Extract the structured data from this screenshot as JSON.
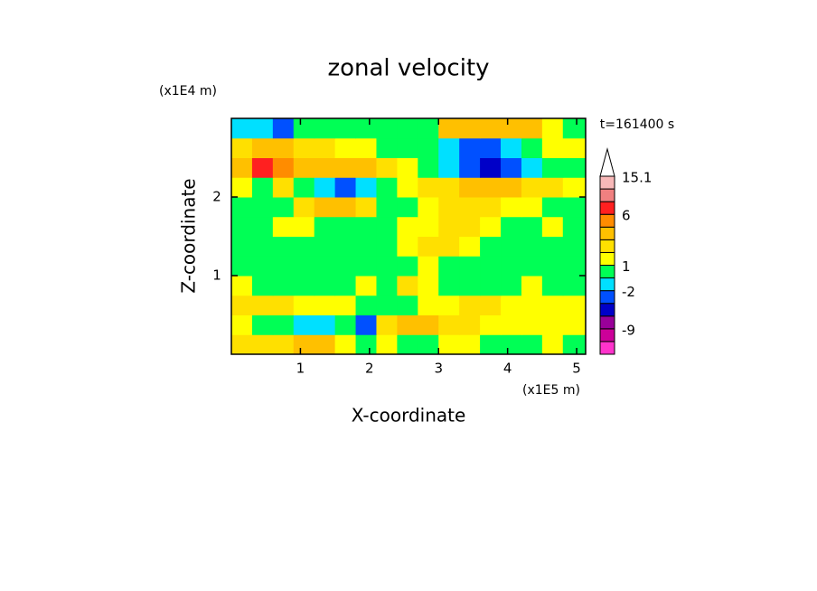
{
  "chart_data": {
    "type": "contour",
    "title": "zonal velocity",
    "time_label": "t=161400 s",
    "xlabel": "X-coordinate",
    "ylabel": "Z-coordinate",
    "x_unit": "(x1E5 m)",
    "y_unit": "(x1E4 m)",
    "xlim": [
      0,
      5.13
    ],
    "ylim": [
      0,
      3
    ],
    "xticks": [
      1,
      2,
      3,
      4,
      5
    ],
    "yticks": [
      1,
      2
    ],
    "x_edges": [
      0,
      0.3,
      0.6,
      0.9,
      1.2,
      1.5,
      1.8,
      2.1,
      2.4,
      2.7,
      3.0,
      3.3,
      3.6,
      3.9,
      4.2,
      4.5,
      4.8,
      5.13
    ],
    "z_edges": [
      0,
      0.25,
      0.5,
      0.75,
      1.0,
      1.25,
      1.5,
      1.75,
      2.0,
      2.25,
      2.5,
      2.75,
      3.0
    ],
    "values": [
      [
        2.5,
        2.5,
        2.5,
        3.5,
        3.5,
        1.5,
        0,
        1.5,
        0,
        0,
        1.5,
        1.5,
        0,
        0,
        0,
        1.5,
        0
      ],
      [
        1.5,
        0,
        0,
        -1.5,
        -1.5,
        0,
        -2.5,
        2.5,
        3.5,
        3.5,
        2.5,
        2.5,
        1.5,
        1.5,
        1.5,
        1.5,
        1.5
      ],
      [
        2.5,
        2.5,
        2.5,
        1.5,
        1.5,
        1.5,
        0,
        0,
        0,
        1.5,
        1.5,
        2.5,
        2.5,
        1.5,
        1.5,
        1.5,
        1.5
      ],
      [
        1.5,
        0,
        0,
        0,
        0,
        0,
        1.5,
        0,
        2.5,
        1.5,
        0,
        0,
        0,
        0,
        1.5,
        0,
        0
      ],
      [
        0,
        0,
        0,
        0,
        0,
        0,
        0,
        0,
        0,
        1.5,
        0,
        0,
        0,
        0,
        0,
        0,
        0
      ],
      [
        0,
        0,
        0,
        0,
        0,
        0,
        0,
        0,
        1.5,
        2.5,
        2.5,
        1.5,
        0,
        0,
        0,
        0,
        0
      ],
      [
        0,
        0,
        1.5,
        1.5,
        0,
        0,
        0,
        0,
        1.5,
        1.5,
        2.5,
        2.5,
        1.5,
        0,
        0,
        1.5,
        0
      ],
      [
        0,
        0,
        0,
        2.5,
        3.5,
        3.5,
        2.5,
        0,
        0,
        1.5,
        2.5,
        2.5,
        2.5,
        1.5,
        1.5,
        0,
        0
      ],
      [
        1.5,
        0,
        2.5,
        0,
        -1.5,
        -2.5,
        -1.5,
        0,
        1.5,
        2.5,
        2.5,
        3.5,
        3.5,
        3.5,
        2.5,
        2.5,
        1.5
      ],
      [
        3.5,
        7,
        5,
        3.5,
        3.5,
        3.5,
        3.5,
        2.5,
        1.5,
        0,
        -1.5,
        -2.5,
        -5,
        -2.5,
        -1.5,
        0,
        0
      ],
      [
        2.5,
        3.5,
        3.5,
        2.5,
        2.5,
        1.5,
        1.5,
        0,
        0,
        0,
        -1.5,
        -2.5,
        -2.5,
        -1.5,
        0,
        1.5,
        1.5
      ],
      [
        -1.5,
        -1.5,
        -2.5,
        0,
        0,
        0,
        0,
        0,
        0,
        0,
        3.5,
        3.5,
        3.5,
        3.5,
        3.5,
        1.5,
        0
      ]
    ],
    "colorbar": {
      "bounds": [
        -15,
        -12,
        -9,
        -6,
        -3,
        -2,
        -1,
        1,
        2,
        3,
        4,
        6,
        9,
        12,
        15.1
      ],
      "colors": [
        "#ff33cc",
        "#cc0099",
        "#990099",
        "#0000c8",
        "#0050ff",
        "#00e0ff",
        "#00ff55",
        "#ffff00",
        "#ffe000",
        "#ffc000",
        "#ff8c00",
        "#ff2020",
        "#f08080",
        "#f8b8b8"
      ],
      "over_color": "#ffffff",
      "ticks": [
        15.1,
        6,
        1,
        -2,
        -9
      ]
    }
  }
}
